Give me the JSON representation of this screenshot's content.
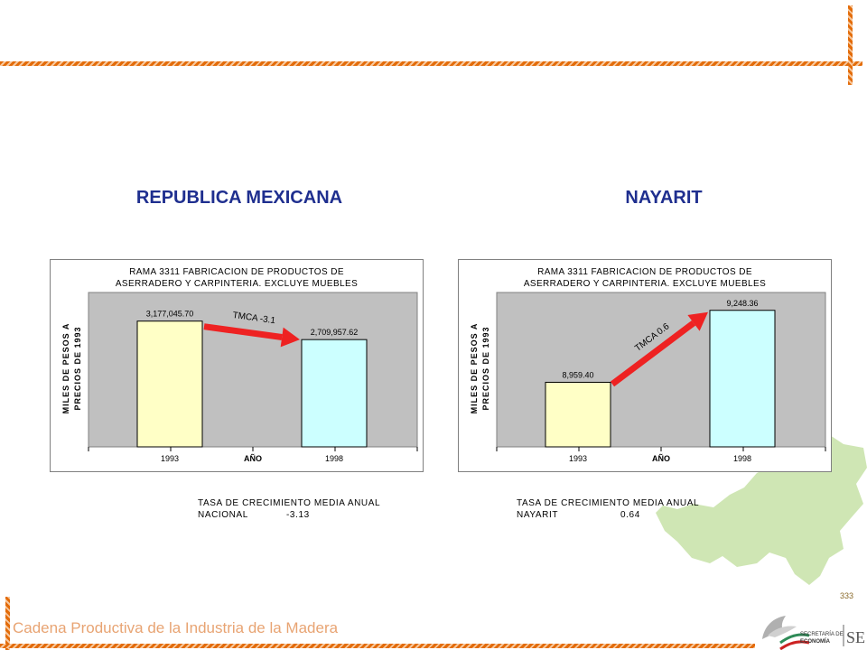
{
  "headings": {
    "left": "REPUBLICA MEXICANA",
    "right": "NAYARIT"
  },
  "charts": [
    {
      "title_lines": [
        "RAMA 3311 FABRICACION DE PRODUCTOS DE",
        "ASERRADERO Y CARPINTERIA. EXCLUYE MUEBLES"
      ],
      "ylabel_lines": [
        "MILES DE PESOS A",
        "PRECIOS DE 1993"
      ],
      "xlabel": "AÑO",
      "annotation": "TMCA -3.1"
    },
    {
      "title_lines": [
        "RAMA 3311 FABRICACION DE PRODUCTOS DE",
        "ASERRADERO Y CARPINTERIA. EXCLUYE MUEBLES"
      ],
      "ylabel_lines": [
        "MILES DE PESOS A",
        "PRECIOS DE 1993"
      ],
      "xlabel": "AÑO",
      "annotation": "TMCA 0.6"
    }
  ],
  "chart_data": [
    {
      "type": "bar",
      "categories": [
        "1993",
        "1998"
      ],
      "values": [
        3177045.7,
        2709957.62
      ],
      "data_labels": [
        "3,177,045.70",
        "2,709,957.62"
      ],
      "ylim": [
        0,
        3900000
      ],
      "bar_colors": [
        "#ffffc6",
        "#ccffff"
      ],
      "arrow": "down",
      "grid": false
    },
    {
      "type": "bar",
      "categories": [
        "1993",
        "1998"
      ],
      "values": [
        8959.4,
        9248.36
      ],
      "data_labels": [
        "8,959.40",
        "9,248.36"
      ],
      "ylim": [
        8700,
        9320
      ],
      "bar_colors": [
        "#ffffc6",
        "#ccffff"
      ],
      "arrow": "up",
      "grid": false
    }
  ],
  "summaries": [
    {
      "title": "TASA DE CRECIMIENTO MEDIA ANUAL",
      "label": "NACIONAL",
      "value": "-3.13"
    },
    {
      "title": "TASA DE CRECIMIENTO MEDIA ANUAL",
      "label": "NAYARIT",
      "value": "0.64"
    }
  ],
  "footer": {
    "text": "Cadena Productiva de la Industria de la Madera",
    "page_number": "333"
  },
  "logo": {
    "line1": "SECRETARÍA DE",
    "line2": "ECONOMÍA",
    "mark": "SE"
  },
  "colors": {
    "accent_orange": "#e36c0a",
    "heading_blue": "#1f2f8f",
    "arrow_red": "#ee2222",
    "plot_bg": "#c0c0c0",
    "map_green": "#cfe6b4"
  }
}
